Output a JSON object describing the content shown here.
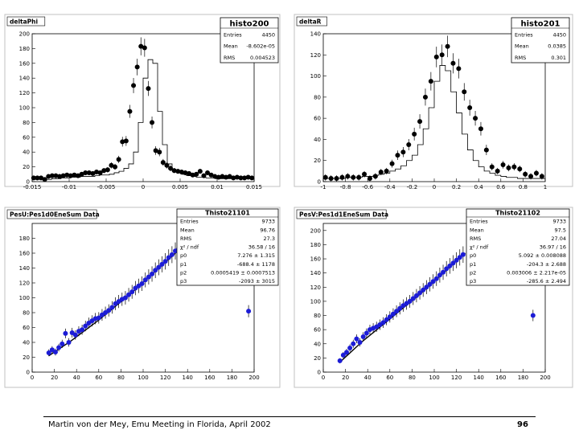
{
  "footer": {
    "text": "Martin von der Mey, Emu Meeting in Florida, April 2002",
    "page": "96"
  },
  "colors": {
    "frame": "#c0c0c0",
    "marker_black": "#000000",
    "marker_blue": "#1c1cd6",
    "fit": "#000000"
  },
  "chart_data": [
    {
      "type": "scatter",
      "title": "deltaPhi",
      "stats_title": "histo200",
      "stats": [
        [
          "Entries",
          "4450"
        ],
        [
          "Mean",
          "-8.602e-05"
        ],
        [
          "RMS",
          "0.004523"
        ]
      ],
      "xlim": [
        -0.015,
        0.015
      ],
      "ylim": [
        0,
        200
      ],
      "xticks": [
        [
          "-0.015",
          -0.015
        ],
        [
          "-0.01",
          -0.01
        ],
        [
          "-0.005",
          -0.005
        ],
        [
          "0",
          0
        ],
        [
          "0.005",
          0.005
        ],
        [
          "0.01",
          0.01
        ],
        [
          "0.015",
          0.015
        ]
      ],
      "yticks": [
        [
          "0",
          0
        ],
        [
          "20",
          20
        ],
        [
          "40",
          40
        ],
        [
          "60",
          60
        ],
        [
          "80",
          80
        ],
        [
          "100",
          100
        ],
        [
          "120",
          120
        ],
        [
          "140",
          140
        ],
        [
          "160",
          160
        ],
        [
          "180",
          180
        ],
        [
          "200",
          200
        ]
      ],
      "points": [
        [
          -0.0148,
          5
        ],
        [
          -0.0143,
          5
        ],
        [
          -0.0138,
          5
        ],
        [
          -0.0133,
          3
        ],
        [
          -0.0128,
          7
        ],
        [
          -0.0123,
          8
        ],
        [
          -0.0118,
          8
        ],
        [
          -0.0113,
          7
        ],
        [
          -0.0108,
          8
        ],
        [
          -0.0103,
          9
        ],
        [
          -0.0098,
          8
        ],
        [
          -0.0093,
          9
        ],
        [
          -0.0088,
          8
        ],
        [
          -0.0083,
          10
        ],
        [
          -0.0078,
          12
        ],
        [
          -0.0073,
          12
        ],
        [
          -0.0068,
          11
        ],
        [
          -0.0063,
          13
        ],
        [
          -0.0058,
          12
        ],
        [
          -0.0053,
          15
        ],
        [
          -0.0048,
          16
        ],
        [
          -0.0043,
          22
        ],
        [
          -0.0038,
          20
        ],
        [
          -0.0033,
          30
        ],
        [
          -0.0028,
          54
        ],
        [
          -0.0023,
          55
        ],
        [
          -0.0018,
          95
        ],
        [
          -0.0013,
          130
        ],
        [
          -0.0008,
          155
        ],
        [
          -0.0003,
          183
        ],
        [
          0.0002,
          181
        ],
        [
          0.0007,
          126
        ],
        [
          0.0012,
          80
        ],
        [
          0.0017,
          42
        ],
        [
          0.0022,
          40
        ],
        [
          0.0027,
          26
        ],
        [
          0.0032,
          22
        ],
        [
          0.0037,
          18
        ],
        [
          0.0042,
          15
        ],
        [
          0.0047,
          14
        ],
        [
          0.0052,
          13
        ],
        [
          0.0057,
          12
        ],
        [
          0.0062,
          11
        ],
        [
          0.0067,
          9
        ],
        [
          0.0072,
          10
        ],
        [
          0.0077,
          14
        ],
        [
          0.0082,
          8
        ],
        [
          0.0087,
          12
        ],
        [
          0.0092,
          9
        ],
        [
          0.0097,
          7
        ],
        [
          0.0102,
          6
        ],
        [
          0.0107,
          7
        ],
        [
          0.0112,
          6
        ],
        [
          0.0117,
          7
        ],
        [
          0.0122,
          5
        ],
        [
          0.0127,
          6
        ],
        [
          0.0132,
          5
        ],
        [
          0.0137,
          5
        ],
        [
          0.0142,
          6
        ],
        [
          0.0147,
          5
        ]
      ],
      "reference_histogram": [
        3,
        3,
        3,
        3,
        4,
        4,
        5,
        5,
        6,
        6,
        7,
        7,
        7,
        8,
        9,
        9,
        10,
        12,
        14,
        18,
        24,
        40,
        80,
        140,
        165,
        160,
        95,
        50,
        24,
        15,
        12,
        10,
        8,
        7,
        6,
        6,
        5,
        5,
        4,
        4,
        4,
        4,
        4,
        4,
        4,
        4
      ],
      "marker_style": "black"
    },
    {
      "type": "scatter",
      "title": "deltaR",
      "stats_title": "histo201",
      "stats": [
        [
          "Entries",
          "4450"
        ],
        [
          "Mean",
          "0.0385"
        ],
        [
          "RMS",
          "0.301"
        ]
      ],
      "xlim": [
        -1,
        1
      ],
      "ylim": [
        0,
        140
      ],
      "xticks": [
        [
          "-1",
          -1
        ],
        [
          "-0.8",
          -0.8
        ],
        [
          "-0.6",
          -0.6
        ],
        [
          "-0.4",
          -0.4
        ],
        [
          "-0.2",
          -0.2
        ],
        [
          "0",
          0
        ],
        [
          "0.2",
          0.2
        ],
        [
          "0.4",
          0.4
        ],
        [
          "0.6",
          0.6
        ],
        [
          "0.8",
          0.8
        ],
        [
          "1",
          1
        ]
      ],
      "yticks": [
        [
          "0",
          0
        ],
        [
          "20",
          20
        ],
        [
          "40",
          40
        ],
        [
          "60",
          60
        ],
        [
          "80",
          80
        ],
        [
          "100",
          100
        ],
        [
          "120",
          120
        ],
        [
          "140",
          140
        ]
      ],
      "points": [
        [
          -0.98,
          4
        ],
        [
          -0.93,
          3
        ],
        [
          -0.88,
          3
        ],
        [
          -0.83,
          4
        ],
        [
          -0.78,
          5
        ],
        [
          -0.73,
          4
        ],
        [
          -0.68,
          4
        ],
        [
          -0.63,
          7
        ],
        [
          -0.58,
          3
        ],
        [
          -0.53,
          5
        ],
        [
          -0.48,
          9
        ],
        [
          -0.43,
          10
        ],
        [
          -0.38,
          17
        ],
        [
          -0.33,
          25
        ],
        [
          -0.28,
          28
        ],
        [
          -0.23,
          35
        ],
        [
          -0.18,
          45
        ],
        [
          -0.13,
          57
        ],
        [
          -0.08,
          80
        ],
        [
          -0.03,
          95
        ],
        [
          0.02,
          118
        ],
        [
          0.07,
          120
        ],
        [
          0.12,
          128
        ],
        [
          0.17,
          112
        ],
        [
          0.22,
          107
        ],
        [
          0.27,
          85
        ],
        [
          0.32,
          70
        ],
        [
          0.37,
          60
        ],
        [
          0.42,
          50
        ],
        [
          0.47,
          30
        ],
        [
          0.52,
          14
        ],
        [
          0.57,
          10
        ],
        [
          0.62,
          16
        ],
        [
          0.67,
          13
        ],
        [
          0.72,
          14
        ],
        [
          0.77,
          12
        ],
        [
          0.82,
          7
        ],
        [
          0.87,
          5
        ],
        [
          0.92,
          8
        ],
        [
          0.97,
          5
        ]
      ],
      "reference_histogram": [
        3,
        3,
        3,
        3,
        4,
        4,
        4,
        5,
        5,
        6,
        7,
        8,
        10,
        12,
        15,
        20,
        25,
        35,
        50,
        70,
        95,
        110,
        105,
        85,
        65,
        45,
        30,
        20,
        14,
        10,
        8,
        6,
        5,
        4,
        4,
        3,
        3,
        3,
        3,
        3
      ],
      "marker_style": "black"
    },
    {
      "type": "scatter",
      "title": "PesU:Pes1d0EneSum Data",
      "stats_title": "Thisto21101",
      "stats": [
        [
          "Entries",
          "9733"
        ],
        [
          "Mean",
          "96.76"
        ],
        [
          "RMS",
          "27.3"
        ],
        [
          "χ² / ndf",
          "36.58 / 16"
        ],
        [
          "p0",
          "7.276 ± 1.315"
        ],
        [
          "p1",
          "-688.4 ± 1178"
        ],
        [
          "p2",
          "0.0005419 ± 0.0007513"
        ],
        [
          "p3",
          "-2093 ± 3015"
        ]
      ],
      "xlim": [
        0,
        200
      ],
      "ylim": [
        0,
        200
      ],
      "xticks": [
        [
          "0",
          0
        ],
        [
          "20",
          20
        ],
        [
          "40",
          40
        ],
        [
          "60",
          60
        ],
        [
          "80",
          80
        ],
        [
          "100",
          100
        ],
        [
          "120",
          120
        ],
        [
          "140",
          140
        ],
        [
          "160",
          160
        ],
        [
          "180",
          180
        ],
        [
          "200",
          200
        ]
      ],
      "yticks": [
        [
          "0",
          0
        ],
        [
          "20",
          20
        ],
        [
          "40",
          40
        ],
        [
          "60",
          60
        ],
        [
          "80",
          80
        ],
        [
          "100",
          100
        ],
        [
          "120",
          120
        ],
        [
          "140",
          140
        ],
        [
          "160",
          160
        ],
        [
          "180",
          180
        ]
      ],
      "points": [
        [
          15,
          26
        ],
        [
          18,
          30
        ],
        [
          21,
          27
        ],
        [
          24,
          33
        ],
        [
          27,
          38
        ],
        [
          30,
          52
        ],
        [
          33,
          40
        ],
        [
          36,
          53
        ],
        [
          39,
          50
        ],
        [
          42,
          55
        ],
        [
          45,
          57
        ],
        [
          48,
          62
        ],
        [
          51,
          66
        ],
        [
          54,
          69
        ],
        [
          57,
          72
        ],
        [
          60,
          73
        ],
        [
          63,
          77
        ],
        [
          66,
          80
        ],
        [
          69,
          83
        ],
        [
          72,
          87
        ],
        [
          75,
          92
        ],
        [
          78,
          95
        ],
        [
          81,
          98
        ],
        [
          84,
          100
        ],
        [
          87,
          104
        ],
        [
          90,
          108
        ],
        [
          93,
          113
        ],
        [
          96,
          116
        ],
        [
          99,
          119
        ],
        [
          102,
          124
        ],
        [
          105,
          128
        ],
        [
          108,
          132
        ],
        [
          111,
          137
        ],
        [
          114,
          141
        ],
        [
          117,
          145
        ],
        [
          120,
          149
        ],
        [
          123,
          154
        ],
        [
          126,
          158
        ],
        [
          129,
          163
        ],
        [
          132,
          166
        ],
        [
          195,
          82
        ]
      ],
      "fit": [
        [
          15,
          22
        ],
        [
          35,
          42
        ],
        [
          60,
          70
        ],
        [
          90,
          107
        ],
        [
          120,
          148
        ],
        [
          135,
          168
        ]
      ],
      "marker_style": "blue"
    },
    {
      "type": "scatter",
      "title": "PesV:Pes1d1EneSum Data",
      "stats_title": "Thisto21102",
      "stats": [
        [
          "Entries",
          "9733"
        ],
        [
          "Mean",
          "97.5"
        ],
        [
          "RMS",
          "27.04"
        ],
        [
          "χ² / ndf",
          "36.97 / 16"
        ],
        [
          "p0",
          "5.092 ± 0.008088"
        ],
        [
          "p1",
          "-204.3 ± 2.688"
        ],
        [
          "p2",
          "0.003006 ± 2.217e-05"
        ],
        [
          "p3",
          "-285.6 ± 2.494"
        ]
      ],
      "xlim": [
        0,
        200
      ],
      "ylim": [
        0,
        210
      ],
      "xticks": [
        [
          "0",
          0
        ],
        [
          "20",
          20
        ],
        [
          "40",
          40
        ],
        [
          "60",
          60
        ],
        [
          "80",
          80
        ],
        [
          "100",
          100
        ],
        [
          "120",
          120
        ],
        [
          "140",
          140
        ],
        [
          "160",
          160
        ],
        [
          "180",
          180
        ],
        [
          "200",
          200
        ]
      ],
      "yticks": [
        [
          "0",
          0
        ],
        [
          "20",
          20
        ],
        [
          "40",
          40
        ],
        [
          "60",
          60
        ],
        [
          "80",
          80
        ],
        [
          "100",
          100
        ],
        [
          "120",
          120
        ],
        [
          "140",
          140
        ],
        [
          "160",
          160
        ],
        [
          "180",
          180
        ],
        [
          "200",
          200
        ]
      ],
      "points": [
        [
          15,
          16
        ],
        [
          18,
          24
        ],
        [
          21,
          28
        ],
        [
          24,
          34
        ],
        [
          27,
          40
        ],
        [
          30,
          47
        ],
        [
          33,
          42
        ],
        [
          36,
          50
        ],
        [
          39,
          55
        ],
        [
          42,
          60
        ],
        [
          45,
          62
        ],
        [
          48,
          64
        ],
        [
          51,
          67
        ],
        [
          54,
          70
        ],
        [
          57,
          74
        ],
        [
          60,
          78
        ],
        [
          63,
          82
        ],
        [
          66,
          86
        ],
        [
          69,
          90
        ],
        [
          72,
          94
        ],
        [
          75,
          97
        ],
        [
          78,
          100
        ],
        [
          81,
          104
        ],
        [
          84,
          108
        ],
        [
          87,
          112
        ],
        [
          90,
          116
        ],
        [
          93,
          120
        ],
        [
          96,
          124
        ],
        [
          99,
          128
        ],
        [
          102,
          132
        ],
        [
          105,
          137
        ],
        [
          108,
          141
        ],
        [
          111,
          146
        ],
        [
          114,
          150
        ],
        [
          117,
          154
        ],
        [
          120,
          158
        ],
        [
          123,
          162
        ],
        [
          126,
          166
        ],
        [
          189,
          80
        ]
      ],
      "fit": [
        [
          15,
          14
        ],
        [
          35,
          43
        ],
        [
          60,
          75
        ],
        [
          90,
          114
        ],
        [
          120,
          157
        ],
        [
          128,
          168
        ]
      ],
      "marker_style": "blue"
    }
  ]
}
